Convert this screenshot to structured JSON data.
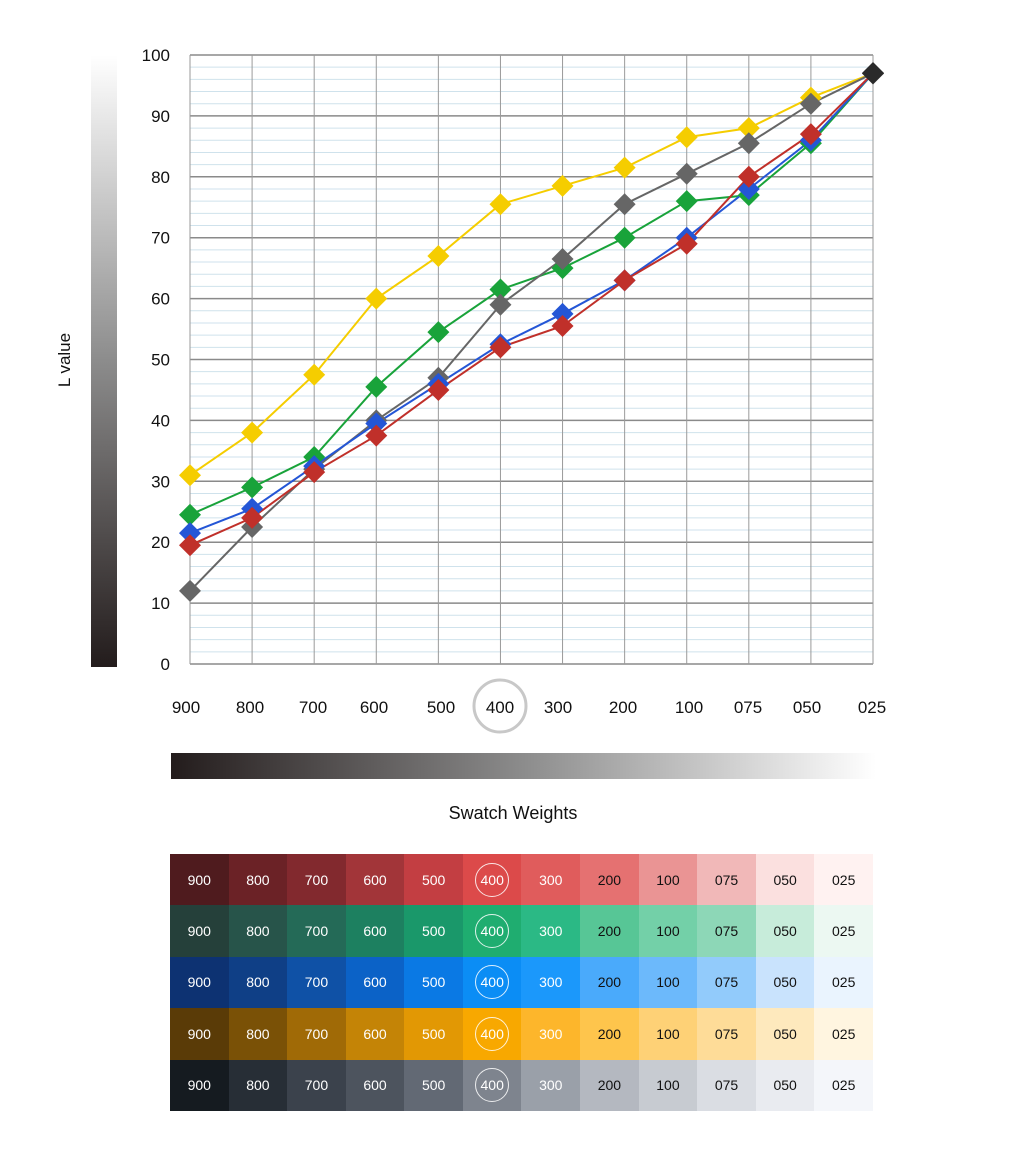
{
  "chart_data": {
    "type": "line",
    "title": "",
    "ylabel": "L value",
    "xlabel": "Swatch Weights",
    "ylim": [
      0,
      100
    ],
    "yticks": [
      0,
      10,
      20,
      30,
      40,
      50,
      60,
      70,
      80,
      90,
      100
    ],
    "categories": [
      "900",
      "800",
      "700",
      "600",
      "500",
      "400",
      "300",
      "200",
      "100",
      "075",
      "050",
      "025"
    ],
    "highlight_category": "400",
    "grid": true,
    "series": [
      {
        "color": "#f5cd00",
        "values": [
          31,
          38,
          47.5,
          60,
          67,
          75.5,
          78.5,
          81.5,
          86.5,
          88,
          93,
          97
        ]
      },
      {
        "color": "#19a33a",
        "values": [
          24.5,
          29,
          34,
          45.5,
          54.5,
          61.5,
          65,
          70,
          76,
          77,
          85.5,
          97
        ]
      },
      {
        "color": "#666666",
        "values": [
          12,
          22.5,
          32,
          40,
          47,
          59,
          66.5,
          75.5,
          80.5,
          85.5,
          92,
          97
        ]
      },
      {
        "color": "#2456d6",
        "values": [
          21.5,
          25.5,
          32.5,
          39.5,
          46,
          52.5,
          57.5,
          63,
          70,
          78,
          86,
          97
        ]
      },
      {
        "color": "#c0302a",
        "values": [
          19.5,
          24,
          31.5,
          37.5,
          45,
          52,
          55.5,
          63,
          69,
          80,
          87,
          97
        ]
      }
    ]
  },
  "swatches": {
    "labels": [
      "900",
      "800",
      "700",
      "600",
      "500",
      "400",
      "300",
      "200",
      "100",
      "075",
      "050",
      "025"
    ],
    "highlight_index": 5,
    "rows": [
      {
        "colors": [
          "#4f1b1e",
          "#6b2226",
          "#82292e",
          "#a23539",
          "#c33e42",
          "#dc4a4a",
          "#e05c5c",
          "#e57171",
          "#ea9494",
          "#f1b8b8",
          "#fbe0df",
          "#fff2f1"
        ],
        "text": [
          "#ffffff",
          "#ffffff",
          "#ffffff",
          "#ffffff",
          "#ffffff",
          "#ffffff",
          "#ffffff",
          "#111111",
          "#111111",
          "#111111",
          "#111111",
          "#111111"
        ]
      },
      {
        "colors": [
          "#25403a",
          "#27544a",
          "#246a57",
          "#1d8060",
          "#1a986a",
          "#1fad70",
          "#2bb985",
          "#57c696",
          "#73d0a8",
          "#8dd7b7",
          "#c7ecda",
          "#ecf8f2"
        ],
        "text": [
          "#ffffff",
          "#ffffff",
          "#ffffff",
          "#ffffff",
          "#ffffff",
          "#ffffff",
          "#ffffff",
          "#111111",
          "#111111",
          "#111111",
          "#111111",
          "#111111"
        ]
      },
      {
        "colors": [
          "#0d3272",
          "#0f3f86",
          "#0f51a6",
          "#0b62c7",
          "#0a79e4",
          "#0b8df5",
          "#1b98fb",
          "#4aaafb",
          "#6cb9fb",
          "#92cbfb",
          "#c9e3fd",
          "#eaf4fe"
        ],
        "text": [
          "#ffffff",
          "#ffffff",
          "#ffffff",
          "#ffffff",
          "#ffffff",
          "#ffffff",
          "#ffffff",
          "#111111",
          "#111111",
          "#111111",
          "#111111",
          "#111111"
        ]
      },
      {
        "colors": [
          "#5a3b07",
          "#7a5106",
          "#a06a06",
          "#c48406",
          "#e29804",
          "#f8a800",
          "#fdb62b",
          "#fec54c",
          "#fed176",
          "#fedc98",
          "#fee9bd",
          "#fff5e0"
        ],
        "text": [
          "#ffffff",
          "#ffffff",
          "#ffffff",
          "#ffffff",
          "#ffffff",
          "#ffffff",
          "#ffffff",
          "#111111",
          "#111111",
          "#111111",
          "#111111",
          "#111111"
        ]
      },
      {
        "colors": [
          "#151b20",
          "#272e36",
          "#3b424c",
          "#4d545e",
          "#626974",
          "#7e848e",
          "#9aa0a9",
          "#b4b8c0",
          "#c7cbd1",
          "#dadde3",
          "#e9ebf0",
          "#f4f6fa"
        ],
        "text": [
          "#ffffff",
          "#ffffff",
          "#ffffff",
          "#ffffff",
          "#ffffff",
          "#ffffff",
          "#ffffff",
          "#111111",
          "#111111",
          "#111111",
          "#111111",
          "#111111"
        ]
      }
    ]
  }
}
